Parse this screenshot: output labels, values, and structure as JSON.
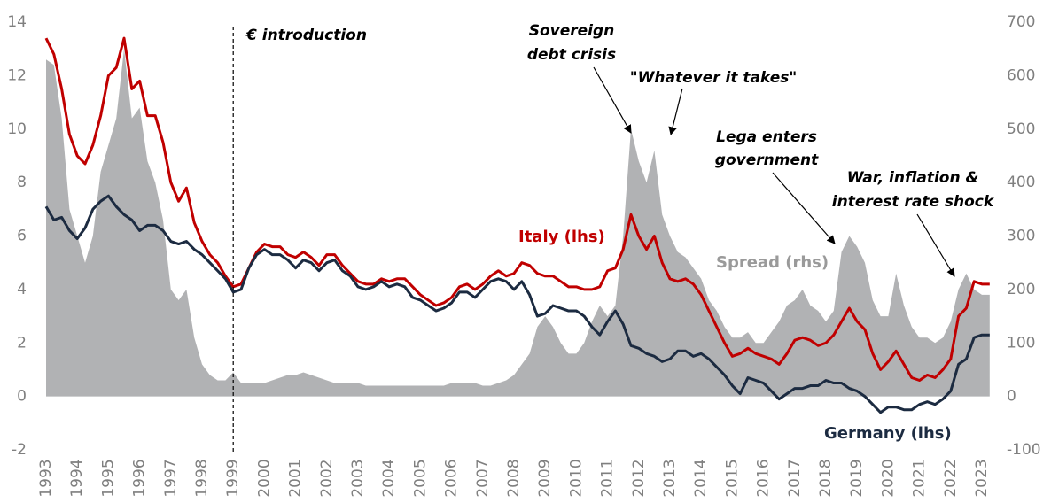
{
  "chart_data": {
    "type": "line",
    "x": [
      1993,
      1993.25,
      1993.5,
      1993.75,
      1994,
      1994.25,
      1994.5,
      1994.75,
      1995,
      1995.25,
      1995.5,
      1995.75,
      1996,
      1996.25,
      1996.5,
      1996.75,
      1997,
      1997.25,
      1997.5,
      1997.75,
      1998,
      1998.25,
      1998.5,
      1998.75,
      1999,
      1999.25,
      1999.5,
      1999.75,
      2000,
      2000.25,
      2000.5,
      2000.75,
      2001,
      2001.25,
      2001.5,
      2001.75,
      2002,
      2002.25,
      2002.5,
      2002.75,
      2003,
      2003.25,
      2003.5,
      2003.75,
      2004,
      2004.25,
      2004.5,
      2004.75,
      2005,
      2005.25,
      2005.5,
      2005.75,
      2006,
      2006.25,
      2006.5,
      2006.75,
      2007,
      2007.25,
      2007.5,
      2007.75,
      2008,
      2008.25,
      2008.5,
      2008.75,
      2009,
      2009.25,
      2009.5,
      2009.75,
      2010,
      2010.25,
      2010.5,
      2010.75,
      2011,
      2011.25,
      2011.5,
      2011.75,
      2012,
      2012.25,
      2012.5,
      2012.75,
      2013,
      2013.25,
      2013.5,
      2013.75,
      2014,
      2014.25,
      2014.5,
      2014.75,
      2015,
      2015.25,
      2015.5,
      2015.75,
      2016,
      2016.25,
      2016.5,
      2016.75,
      2017,
      2017.25,
      2017.5,
      2017.75,
      2018,
      2018.25,
      2018.5,
      2018.75,
      2019,
      2019.25,
      2019.5,
      2019.75,
      2020,
      2020.25,
      2020.5,
      2020.75,
      2021,
      2021.25,
      2021.5,
      2021.75,
      2022,
      2022.25,
      2022.5,
      2022.75,
      2023,
      2023.25
    ],
    "series": [
      {
        "name": "Spread (rhs)",
        "color": "#b1b2b4",
        "axis": "y2",
        "fill": true,
        "values": [
          630,
          620,
          520,
          350,
          300,
          250,
          300,
          420,
          470,
          520,
          650,
          520,
          540,
          440,
          400,
          330,
          200,
          180,
          200,
          110,
          60,
          40,
          30,
          30,
          45,
          25,
          25,
          25,
          25,
          30,
          35,
          40,
          40,
          45,
          40,
          35,
          30,
          25,
          25,
          25,
          25,
          20,
          20,
          20,
          20,
          20,
          20,
          20,
          20,
          20,
          20,
          20,
          25,
          25,
          25,
          25,
          20,
          20,
          25,
          30,
          40,
          60,
          80,
          130,
          150,
          130,
          100,
          80,
          80,
          100,
          140,
          170,
          150,
          170,
          300,
          500,
          440,
          400,
          460,
          340,
          300,
          270,
          260,
          240,
          220,
          180,
          160,
          130,
          110,
          110,
          120,
          100,
          100,
          120,
          140,
          170,
          180,
          200,
          170,
          160,
          140,
          160,
          270,
          300,
          280,
          250,
          180,
          150,
          150,
          230,
          170,
          130,
          110,
          110,
          100,
          110,
          140,
          200,
          230,
          200,
          190,
          190
        ]
      },
      {
        "name": "Italy (lhs)",
        "color": "#c00000",
        "axis": "y",
        "values": [
          13.4,
          12.8,
          11.5,
          9.8,
          9.0,
          8.7,
          9.4,
          10.5,
          12.0,
          12.3,
          13.4,
          11.5,
          11.8,
          10.5,
          10.5,
          9.5,
          8.0,
          7.3,
          7.8,
          6.5,
          5.8,
          5.3,
          5.0,
          4.5,
          4.1,
          4.2,
          4.8,
          5.4,
          5.7,
          5.6,
          5.6,
          5.3,
          5.2,
          5.4,
          5.2,
          4.9,
          5.3,
          5.3,
          4.9,
          4.6,
          4.3,
          4.2,
          4.2,
          4.4,
          4.3,
          4.4,
          4.4,
          4.1,
          3.8,
          3.6,
          3.4,
          3.5,
          3.7,
          4.1,
          4.2,
          4.0,
          4.2,
          4.5,
          4.7,
          4.5,
          4.6,
          5.0,
          4.9,
          4.6,
          4.5,
          4.5,
          4.3,
          4.1,
          4.1,
          4.0,
          4.0,
          4.1,
          4.7,
          4.8,
          5.5,
          6.8,
          6.0,
          5.5,
          6.0,
          5.0,
          4.4,
          4.3,
          4.4,
          4.2,
          3.8,
          3.2,
          2.6,
          2.0,
          1.5,
          1.6,
          1.8,
          1.6,
          1.5,
          1.4,
          1.2,
          1.6,
          2.1,
          2.2,
          2.1,
          1.9,
          2.0,
          2.3,
          2.8,
          3.3,
          2.8,
          2.5,
          1.6,
          1.0,
          1.3,
          1.7,
          1.2,
          0.7,
          0.6,
          0.8,
          0.7,
          1.0,
          1.4,
          3.0,
          3.3,
          4.3,
          4.2,
          4.2
        ]
      },
      {
        "name": "Germany (lhs)",
        "color": "#1c2b41",
        "axis": "y",
        "values": [
          7.1,
          6.6,
          6.7,
          6.2,
          5.9,
          6.3,
          7.0,
          7.3,
          7.5,
          7.1,
          6.8,
          6.6,
          6.2,
          6.4,
          6.4,
          6.2,
          5.8,
          5.7,
          5.8,
          5.5,
          5.3,
          5.0,
          4.7,
          4.4,
          3.9,
          4.0,
          4.8,
          5.3,
          5.5,
          5.3,
          5.3,
          5.1,
          4.8,
          5.1,
          5.0,
          4.7,
          5.0,
          5.1,
          4.7,
          4.5,
          4.1,
          4.0,
          4.1,
          4.3,
          4.1,
          4.2,
          4.1,
          3.7,
          3.6,
          3.4,
          3.2,
          3.3,
          3.5,
          3.9,
          3.9,
          3.7,
          4.0,
          4.3,
          4.4,
          4.3,
          4.0,
          4.3,
          3.8,
          3.0,
          3.1,
          3.4,
          3.3,
          3.2,
          3.2,
          3.0,
          2.6,
          2.3,
          2.8,
          3.2,
          2.7,
          1.9,
          1.8,
          1.6,
          1.5,
          1.3,
          1.4,
          1.7,
          1.7,
          1.5,
          1.6,
          1.4,
          1.1,
          0.8,
          0.4,
          0.1,
          0.7,
          0.6,
          0.5,
          0.2,
          -0.1,
          0.1,
          0.3,
          0.3,
          0.4,
          0.4,
          0.6,
          0.5,
          0.5,
          0.3,
          0.2,
          0.0,
          -0.3,
          -0.6,
          -0.4,
          -0.4,
          -0.5,
          -0.5,
          -0.3,
          -0.2,
          -0.3,
          -0.1,
          0.2,
          1.2,
          1.4,
          2.2,
          2.3,
          2.3
        ]
      }
    ],
    "xlim": [
      1993,
      2023.4
    ],
    "xticks": [
      1993,
      1994,
      1995,
      1996,
      1997,
      1998,
      1999,
      2000,
      2001,
      2002,
      2003,
      2004,
      2005,
      2006,
      2007,
      2008,
      2009,
      2010,
      2011,
      2012,
      2013,
      2014,
      2015,
      2016,
      2017,
      2018,
      2019,
      2020,
      2021,
      2022,
      2023
    ],
    "ylim": [
      -2,
      14
    ],
    "yticks": [
      -2,
      0,
      2,
      4,
      6,
      8,
      10,
      12,
      14
    ],
    "y2lim": [
      -100,
      700
    ],
    "y2ticks": [
      -100,
      0,
      100,
      200,
      300,
      400,
      500,
      600,
      700
    ],
    "vline": {
      "x": 1999,
      "label": "€ introduction"
    },
    "annotations": [
      {
        "lines": [
          "Sovereign",
          "debt crisis"
        ]
      },
      {
        "lines": [
          "\"Whatever it takes\""
        ]
      },
      {
        "lines": [
          "Lega enters",
          "government"
        ]
      },
      {
        "lines": [
          "War, inflation &",
          "interest rate shock"
        ]
      }
    ]
  }
}
